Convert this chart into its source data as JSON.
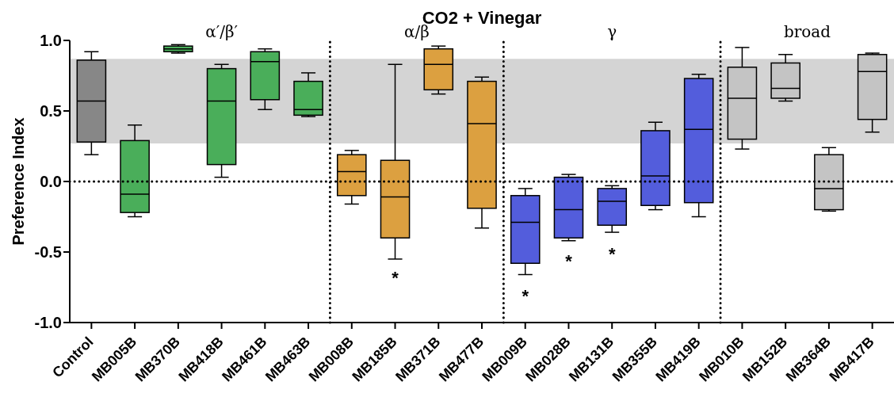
{
  "chart_data": {
    "type": "box",
    "title": "CO2 + Vinegar",
    "ylabel": "Preference Index",
    "categories": [
      "Control",
      "MB005B",
      "MB370B",
      "MB418B",
      "MB461B",
      "MB463B",
      "MB008B",
      "MB185B",
      "MB371B",
      "MB477B",
      "MB009B",
      "MB028B",
      "MB131B",
      "MB355B",
      "MB419B",
      "MB010B",
      "MB152B",
      "MB364B",
      "MB417B"
    ],
    "colors": [
      "#878787",
      "#4aae5a",
      "#4aae5a",
      "#4aae5a",
      "#4aae5a",
      "#4aae5a",
      "#dca040",
      "#dca040",
      "#dca040",
      "#dca040",
      "#535ddc",
      "#535ddc",
      "#535ddc",
      "#535ddc",
      "#535ddc",
      "#c4c4c4",
      "#c4c4c4",
      "#c4c4c4",
      "#c4c4c4"
    ],
    "boxes": [
      {
        "low": 0.19,
        "q1": 0.28,
        "median": 0.57,
        "q3": 0.86,
        "high": 0.92
      },
      {
        "low": -0.25,
        "q1": -0.22,
        "median": -0.09,
        "q3": 0.29,
        "high": 0.4
      },
      {
        "low": 0.91,
        "q1": 0.92,
        "median": 0.94,
        "q3": 0.96,
        "high": 0.97
      },
      {
        "low": 0.03,
        "q1": 0.12,
        "median": 0.57,
        "q3": 0.8,
        "high": 0.83
      },
      {
        "low": 0.51,
        "q1": 0.58,
        "median": 0.85,
        "q3": 0.92,
        "high": 0.94
      },
      {
        "low": 0.46,
        "q1": 0.47,
        "median": 0.51,
        "q3": 0.71,
        "high": 0.77
      },
      {
        "low": -0.16,
        "q1": -0.1,
        "median": 0.07,
        "q3": 0.19,
        "high": 0.22
      },
      {
        "low": -0.55,
        "q1": -0.4,
        "median": -0.11,
        "q3": 0.15,
        "high": 0.83
      },
      {
        "low": 0.62,
        "q1": 0.65,
        "median": 0.83,
        "q3": 0.94,
        "high": 0.96
      },
      {
        "low": -0.33,
        "q1": -0.19,
        "median": 0.41,
        "q3": 0.71,
        "high": 0.74
      },
      {
        "low": -0.66,
        "q1": -0.58,
        "median": -0.29,
        "q3": -0.1,
        "high": -0.05
      },
      {
        "low": -0.42,
        "q1": -0.4,
        "median": -0.2,
        "q3": 0.03,
        "high": 0.05
      },
      {
        "low": -0.36,
        "q1": -0.31,
        "median": -0.14,
        "q3": -0.05,
        "high": -0.03
      },
      {
        "low": -0.2,
        "q1": -0.17,
        "median": 0.04,
        "q3": 0.36,
        "high": 0.42
      },
      {
        "low": -0.25,
        "q1": -0.15,
        "median": 0.37,
        "q3": 0.73,
        "high": 0.76
      },
      {
        "low": 0.23,
        "q1": 0.3,
        "median": 0.59,
        "q3": 0.81,
        "high": 0.95
      },
      {
        "low": 0.57,
        "q1": 0.59,
        "median": 0.66,
        "q3": 0.84,
        "high": 0.9
      },
      {
        "low": -0.21,
        "q1": -0.2,
        "median": -0.05,
        "q3": 0.19,
        "high": 0.24
      },
      {
        "low": 0.35,
        "q1": 0.44,
        "median": 0.78,
        "q3": 0.9,
        "high": 0.91
      }
    ],
    "ylim": [
      -1,
      1
    ],
    "yticks": [
      {
        "value": -1,
        "label": "-1.0"
      },
      {
        "value": -0.5,
        "label": "-0.5"
      },
      {
        "value": 0,
        "label": "0.0"
      },
      {
        "value": 0.5,
        "label": "0.5"
      },
      {
        "value": 1,
        "label": "1.0"
      }
    ],
    "bands": [
      {
        "axis": "y",
        "from": 0.27,
        "to": 0.87,
        "color": "#d4d4d4"
      }
    ],
    "ref_lines": [
      {
        "axis": "y",
        "value": 0,
        "line_style": "dotted"
      }
    ],
    "annotations": [
      "α′/β′",
      "α/β",
      "γ",
      "broad",
      "*",
      "*",
      "*",
      "*"
    ],
    "grid": false
  }
}
